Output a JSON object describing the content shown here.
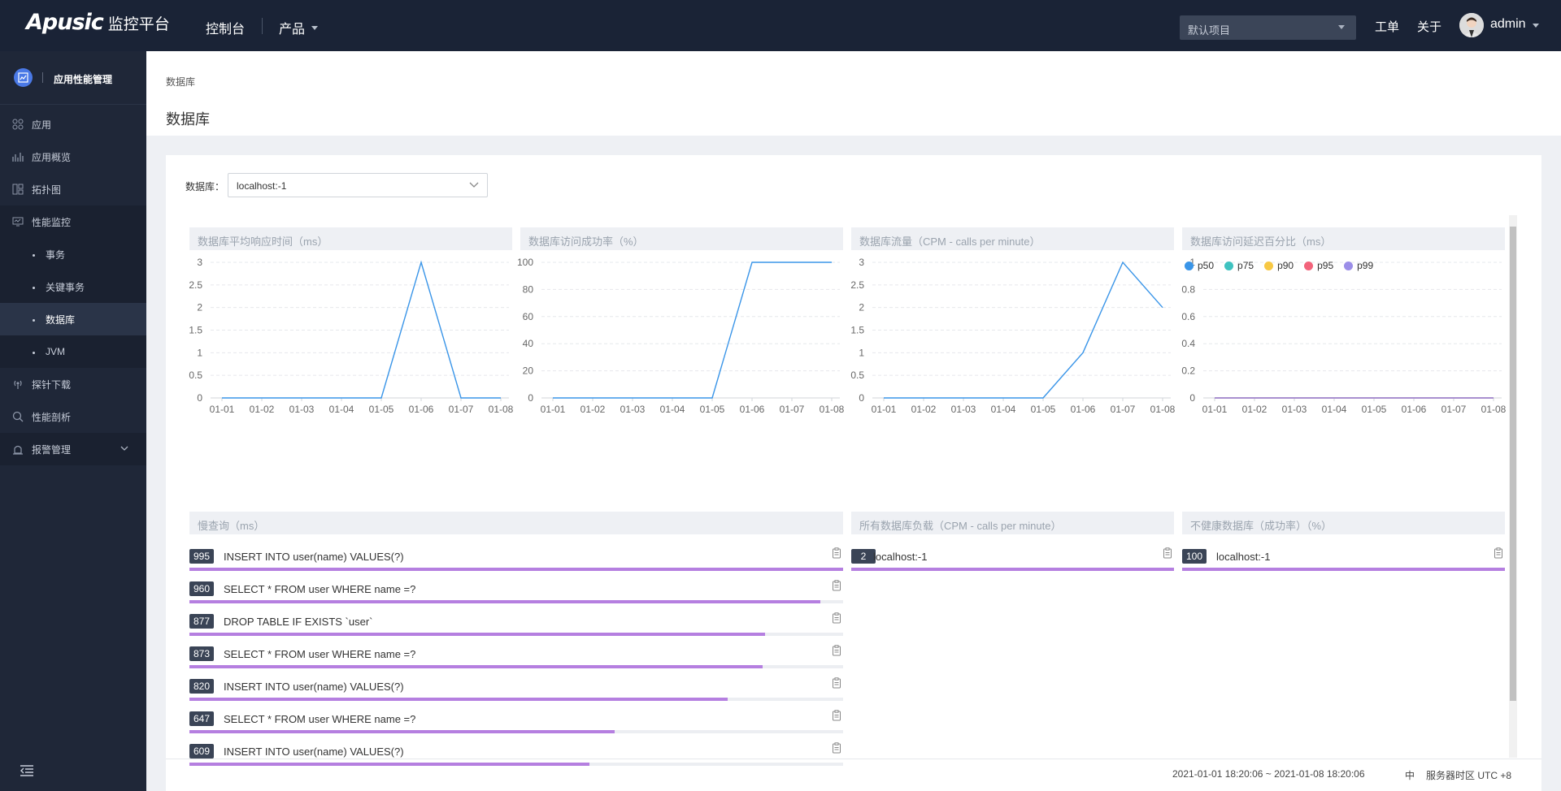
{
  "header": {
    "brand": "Apusic",
    "platform": "监控平台",
    "nav_console": "控制台",
    "nav_product": "产品",
    "project_select": "默认项目",
    "nav_ticket": "工单",
    "nav_about": "关于",
    "user": "admin"
  },
  "sidebar": {
    "app_title": "应用性能管理",
    "items": [
      {
        "label": "应用",
        "icon": "apps-icon"
      },
      {
        "label": "应用概览",
        "icon": "bar-chart-icon"
      },
      {
        "label": "拓扑图",
        "icon": "topology-icon"
      },
      {
        "label": "性能监控",
        "icon": "monitor-icon"
      },
      {
        "label": "事务"
      },
      {
        "label": "关键事务"
      },
      {
        "label": "数据库",
        "active": true
      },
      {
        "label": "JVM"
      },
      {
        "label": "探针下载",
        "icon": "probe-icon"
      },
      {
        "label": "性能剖析",
        "icon": "search-icon"
      },
      {
        "label": "报警管理",
        "icon": "alarm-icon"
      }
    ]
  },
  "page": {
    "breadcrumb": "数据库",
    "title": "数据库",
    "db_label": "数据库：",
    "db_value": "localhost:-1"
  },
  "panels": {
    "avg_response": "数据库平均响应时间（ms）",
    "success_rate": "数据库访问成功率（%）",
    "throughput": "数据库流量（CPM - calls per minute）",
    "latency_pct": "数据库访问延迟百分比（ms）",
    "slow_query": "慢查询（ms）",
    "all_db_load": "所有数据库负载（CPM - calls per minute）",
    "unhealthy_db": "不健康数据库（成功率）（%）"
  },
  "chart_data": [
    {
      "type": "line",
      "title": "数据库平均响应时间（ms）",
      "categories": [
        "01-01",
        "01-02",
        "01-03",
        "01-04",
        "01-05",
        "01-06",
        "01-07",
        "01-08"
      ],
      "y_ticks": [
        "0",
        "0.5",
        "1",
        "1.5",
        "2",
        "2.5",
        "3"
      ],
      "ylim": [
        0,
        3
      ],
      "x": [
        "01-01",
        "01-02",
        "01-03",
        "01-04",
        "01-05",
        "01-06",
        "01-07",
        "01-08"
      ],
      "values": [
        0,
        0,
        0,
        0,
        0,
        3,
        0,
        0
      ],
      "color": "#3a95e8"
    },
    {
      "type": "line",
      "title": "数据库访问成功率（%）",
      "categories": [
        "01-01",
        "01-02",
        "01-03",
        "01-04",
        "01-05",
        "01-06",
        "01-07",
        "01-08"
      ],
      "y_ticks": [
        "0",
        "20",
        "40",
        "60",
        "80",
        "100"
      ],
      "ylim": [
        0,
        100
      ],
      "values": [
        0,
        0,
        0,
        0,
        0,
        100,
        100,
        100
      ],
      "color": "#3a95e8"
    },
    {
      "type": "line",
      "title": "数据库流量（CPM - calls per minute）",
      "categories": [
        "01-01",
        "01-02",
        "01-03",
        "01-04",
        "01-05",
        "01-06",
        "01-07",
        "01-08"
      ],
      "y_ticks": [
        "0",
        "0.5",
        "1",
        "1.5",
        "2",
        "2.5",
        "3"
      ],
      "ylim": [
        0,
        3
      ],
      "values": [
        0,
        0,
        0,
        0,
        0,
        1,
        3,
        2
      ],
      "color": "#3a95e8"
    },
    {
      "type": "line",
      "title": "数据库访问延迟百分比（ms）",
      "categories": [
        "01-01",
        "01-02",
        "01-03",
        "01-04",
        "01-05",
        "01-06",
        "01-07",
        "01-08"
      ],
      "y_ticks": [
        "0",
        "0.2",
        "0.4",
        "0.6",
        "0.8",
        "1"
      ],
      "ylim": [
        0,
        1
      ],
      "legend_placement": "top-left",
      "series": [
        {
          "name": "p50",
          "color": "#3a95e8",
          "values": [
            0,
            0,
            0,
            0,
            0,
            0,
            0,
            0
          ]
        },
        {
          "name": "p75",
          "color": "#3fc2c0",
          "values": [
            0,
            0,
            0,
            0,
            0,
            0,
            0,
            0
          ]
        },
        {
          "name": "p90",
          "color": "#f7c844",
          "values": [
            0,
            0,
            0,
            0,
            0,
            0,
            0,
            0
          ]
        },
        {
          "name": "p95",
          "color": "#f2637b",
          "values": [
            0,
            0,
            0,
            0,
            0,
            0,
            0,
            0
          ]
        },
        {
          "name": "p99",
          "color": "#9b8ee8",
          "values": [
            0,
            0,
            0,
            0,
            0,
            0,
            0,
            0
          ]
        }
      ]
    }
  ],
  "slow_queries": [
    {
      "value": "995",
      "text": "INSERT INTO user(name) VALUES(?)",
      "ratio": 1.0
    },
    {
      "value": "960",
      "text": "SELECT * FROM user WHERE name =?",
      "ratio": 0.965
    },
    {
      "value": "877",
      "text": "DROP TABLE IF EXISTS `user`",
      "ratio": 0.881
    },
    {
      "value": "873",
      "text": "SELECT * FROM user WHERE name =?",
      "ratio": 0.877
    },
    {
      "value": "820",
      "text": "INSERT INTO user(name) VALUES(?)",
      "ratio": 0.824
    },
    {
      "value": "647",
      "text": "SELECT * FROM user WHERE name =?",
      "ratio": 0.65
    },
    {
      "value": "609",
      "text": "INSERT INTO user(name) VALUES(?)",
      "ratio": 0.612
    }
  ],
  "db_load": [
    {
      "value": "2",
      "text": "localhost:-1",
      "ratio": 1.0
    }
  ],
  "unhealthy": [
    {
      "value": "100",
      "text": "localhost:-1",
      "ratio": 1.0
    }
  ],
  "footer": {
    "time_range": "2021-01-01 18:20:06 ~ 2021-01-08 18:20:06",
    "lang": "中",
    "timezone": "服务器时区 UTC +8"
  }
}
